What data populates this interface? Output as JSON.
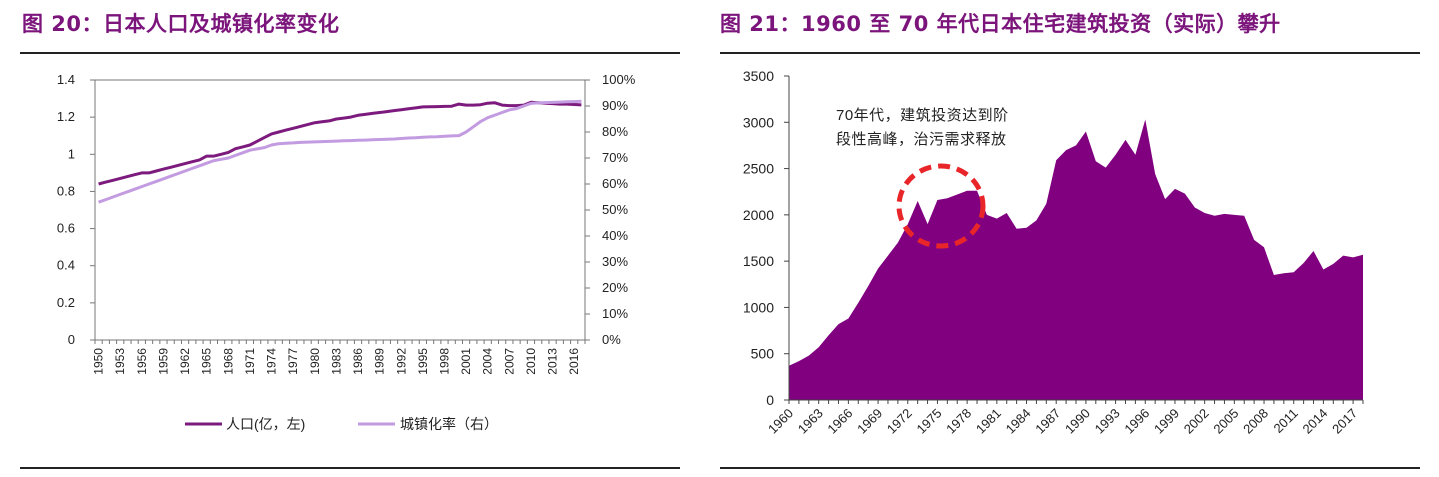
{
  "figures": {
    "left": {
      "title": "图 20：日本人口及城镇化率变化"
    },
    "right": {
      "title": "图 21：1960 至 70 年代日本住宅建筑投资（实际）攀升"
    }
  },
  "colors": {
    "title": "#7b147b",
    "population_line": "#7d1a7d",
    "urbanization_line": "#c39be0",
    "area_fill": "#800080",
    "annotation_circle": "#e8262a"
  },
  "chart_data": [
    {
      "type": "line",
      "title": "图 20：日本人口及城镇化率变化",
      "x": [
        1950,
        1951,
        1952,
        1953,
        1954,
        1955,
        1956,
        1957,
        1958,
        1959,
        1960,
        1961,
        1962,
        1963,
        1964,
        1965,
        1966,
        1967,
        1968,
        1969,
        1970,
        1971,
        1972,
        1973,
        1974,
        1975,
        1976,
        1977,
        1978,
        1979,
        1980,
        1981,
        1982,
        1983,
        1984,
        1985,
        1986,
        1987,
        1988,
        1989,
        1990,
        1991,
        1992,
        1993,
        1994,
        1995,
        1996,
        1997,
        1998,
        1999,
        2000,
        2001,
        2002,
        2003,
        2004,
        2005,
        2006,
        2007,
        2008,
        2009,
        2010,
        2011,
        2012,
        2013,
        2014,
        2015,
        2016,
        2017
      ],
      "x_tick_labels": [
        "1950",
        "1953",
        "1956",
        "1959",
        "1962",
        "1965",
        "1968",
        "1971",
        "1974",
        "1977",
        "1980",
        "1983",
        "1986",
        "1989",
        "1992",
        "1995",
        "1998",
        "2001",
        "2004",
        "2007",
        "2010",
        "2013",
        "2016"
      ],
      "y_left": {
        "lim": [
          0,
          1.4
        ],
        "ticks": [
          "0",
          "0.2",
          "0.4",
          "0.6",
          "0.8",
          "1",
          "1.2",
          "1.4"
        ]
      },
      "y_right": {
        "lim": [
          0,
          100
        ],
        "ticks": [
          "0%",
          "10%",
          "20%",
          "30%",
          "40%",
          "50%",
          "60%",
          "70%",
          "80%",
          "90%",
          "100%"
        ]
      },
      "series": [
        {
          "name": "人口(亿，左)",
          "axis": "left",
          "values": [
            0.84,
            0.85,
            0.86,
            0.87,
            0.88,
            0.89,
            0.9,
            0.9,
            0.91,
            0.92,
            0.93,
            0.94,
            0.95,
            0.96,
            0.97,
            0.99,
            0.99,
            1.0,
            1.01,
            1.03,
            1.04,
            1.05,
            1.07,
            1.09,
            1.11,
            1.12,
            1.13,
            1.14,
            1.15,
            1.16,
            1.17,
            1.175,
            1.18,
            1.19,
            1.195,
            1.2,
            1.21,
            1.215,
            1.22,
            1.225,
            1.23,
            1.235,
            1.24,
            1.245,
            1.25,
            1.255,
            1.256,
            1.257,
            1.258,
            1.259,
            1.27,
            1.265,
            1.265,
            1.267,
            1.275,
            1.277,
            1.265,
            1.262,
            1.262,
            1.265,
            1.28,
            1.278,
            1.275,
            1.273,
            1.27,
            1.27,
            1.268,
            1.266
          ]
        },
        {
          "name": "城镇化率（右）",
          "axis": "right",
          "values": [
            53,
            54,
            55,
            56,
            57,
            58,
            59,
            60,
            61,
            62,
            63,
            64,
            65,
            66,
            67,
            68,
            69,
            69.5,
            70,
            71,
            72,
            73,
            73.5,
            74,
            75,
            75.5,
            75.7,
            75.8,
            76,
            76.1,
            76.2,
            76.3,
            76.4,
            76.5,
            76.6,
            76.7,
            76.8,
            76.9,
            77,
            77.1,
            77.2,
            77.3,
            77.5,
            77.7,
            77.8,
            78,
            78.1,
            78.2,
            78.4,
            78.5,
            78.6,
            80,
            82,
            84,
            85.5,
            86.5,
            87.5,
            88.5,
            89,
            90,
            91,
            91.2,
            91.3,
            91.4,
            91.5,
            91.6,
            91.7,
            91.8
          ]
        }
      ]
    },
    {
      "type": "area",
      "title": "图 21：1960 至 70 年代日本住宅建筑投资（实际）攀升",
      "x": [
        1960,
        1961,
        1962,
        1963,
        1964,
        1965,
        1966,
        1967,
        1968,
        1969,
        1970,
        1971,
        1972,
        1973,
        1974,
        1975,
        1976,
        1977,
        1978,
        1979,
        1980,
        1981,
        1982,
        1983,
        1984,
        1985,
        1986,
        1987,
        1988,
        1989,
        1990,
        1991,
        1992,
        1993,
        1994,
        1995,
        1996,
        1997,
        1998,
        1999,
        2000,
        2001,
        2002,
        2003,
        2004,
        2005,
        2006,
        2007,
        2008,
        2009,
        2010,
        2011,
        2012,
        2013,
        2014,
        2015,
        2016,
        2017,
        2018
      ],
      "x_tick_labels": [
        "1960",
        "1963",
        "1966",
        "1969",
        "1972",
        "1975",
        "1978",
        "1981",
        "1984",
        "1987",
        "1990",
        "1993",
        "1996",
        "1999",
        "2002",
        "2005",
        "2008",
        "2011",
        "2014",
        "2017"
      ],
      "ylim": [
        0,
        3500
      ],
      "y_ticks": [
        "0",
        "500",
        "1000",
        "1500",
        "2000",
        "2500",
        "3000",
        "3500"
      ],
      "series": [
        {
          "name": "住宅建筑投资（实际）",
          "values": [
            370,
            420,
            480,
            570,
            700,
            820,
            880,
            1050,
            1230,
            1420,
            1560,
            1700,
            1900,
            2150,
            1900,
            2160,
            2180,
            2220,
            2260,
            2260,
            2000,
            1960,
            2020,
            1850,
            1860,
            1940,
            2120,
            2590,
            2700,
            2750,
            2900,
            2580,
            2510,
            2650,
            2810,
            2650,
            3030,
            2440,
            2170,
            2280,
            2230,
            2080,
            2020,
            1990,
            2010,
            2000,
            1990,
            1730,
            1650,
            1350,
            1370,
            1380,
            1480,
            1610,
            1410,
            1470,
            1560,
            1540,
            1570
          ]
        }
      ],
      "annotation": {
        "lines": [
          "70年代，建筑投资达到阶",
          "段性高峰，治污需求释放"
        ]
      }
    }
  ]
}
